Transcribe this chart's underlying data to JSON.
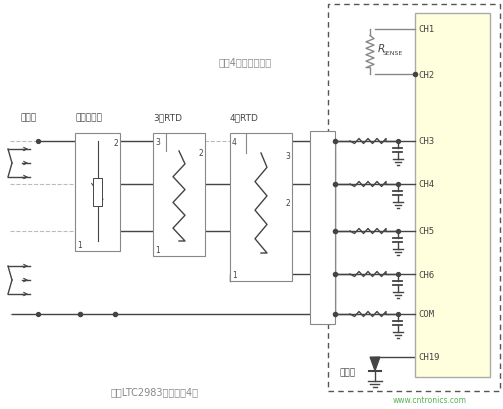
{
  "bg_color": "#ffffff",
  "chip_bg": "#ffffdd",
  "chip_border": "#aaaaaa",
  "line_color": "#444444",
  "gray_color": "#888888",
  "text_color": "#444444",
  "ch_labels": [
    "CH1",
    "CH2",
    "CH3",
    "CH4",
    "CH5",
    "CH6",
    "COM",
    "CH19"
  ],
  "label_top": "所有4组传感器共用",
  "label_bottom": "每个LTC2983连接多达4组",
  "label_thermocouple": "热电偶",
  "label_thermistor": "热敏电阵器",
  "label_rtd3": "3线RTD",
  "label_rtd4": "4线RTD",
  "label_cold": "冷接点",
  "watermark": "www.cntronics.com",
  "fig_w": 5.03,
  "fig_h": 4.1,
  "dpi": 100
}
